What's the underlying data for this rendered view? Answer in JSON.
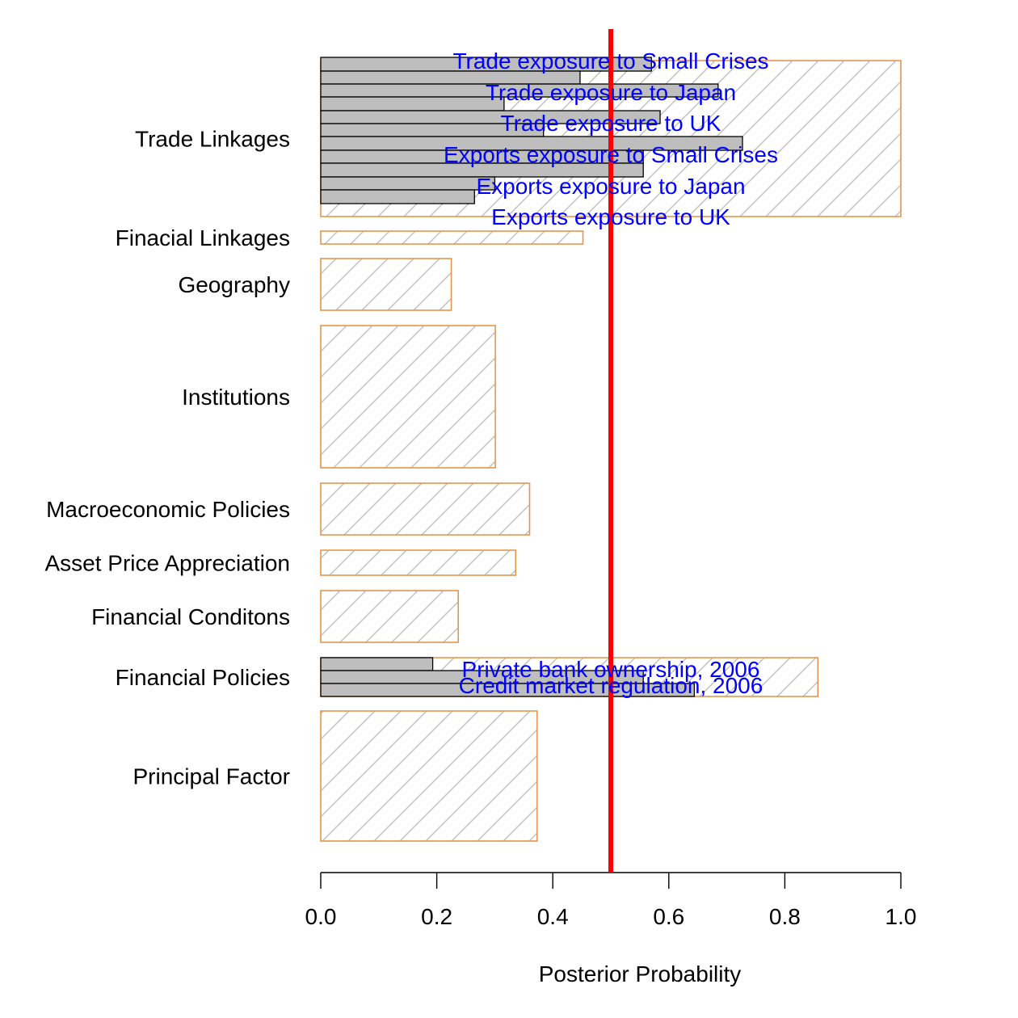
{
  "chart_data": {
    "type": "bar",
    "orientation": "horizontal",
    "xlabel": "Posterior Probability",
    "xlim": [
      0,
      1
    ],
    "xticks": [
      0.0,
      0.2,
      0.4,
      0.6,
      0.8,
      1.0
    ],
    "xtick_labels": [
      "0.0",
      "0.2",
      "0.4",
      "0.6",
      "0.8",
      "1.0"
    ],
    "threshold": 0.5,
    "grid": false,
    "legend": "none",
    "colors": {
      "group_border": "#e8954c",
      "hatch": "#bebebe",
      "variable_fill": "#bebebe",
      "variable_border": "#000000",
      "threshold_line": "#ff0000",
      "variable_label": "#0000ff"
    },
    "groups": [
      {
        "label": "Trade Linkages",
        "value": 1.0,
        "variables": [
          {
            "name": "",
            "value": 0.57
          },
          {
            "name": "",
            "value": 0.447
          },
          {
            "name": "",
            "value": 0.685
          },
          {
            "name": "",
            "value": 0.316
          },
          {
            "name": "",
            "value": 0.585
          },
          {
            "name": "",
            "value": 0.384
          },
          {
            "name": "",
            "value": 0.727
          },
          {
            "name": "",
            "value": 0.556
          },
          {
            "name": "",
            "value": 0.556
          },
          {
            "name": "",
            "value": 0.3
          },
          {
            "name": "",
            "value": 0.265
          }
        ],
        "labels": [
          "Trade exposure to Small Crises",
          "Trade exposure to Japan",
          "Trade exposure to UK",
          "Exports exposure to Small Crises",
          "Exports exposure to Japan",
          "Exports exposure to UK"
        ]
      },
      {
        "label": "Finacial Linkages",
        "value": 0.452,
        "variables": [],
        "labels": []
      },
      {
        "label": "Geography",
        "value": 0.225,
        "variables": [],
        "labels": []
      },
      {
        "label": "Institutions",
        "value": 0.301,
        "variables": [],
        "labels": []
      },
      {
        "label": "Macroeconomic Policies",
        "value": 0.36,
        "variables": [],
        "labels": []
      },
      {
        "label": "Asset Price Appreciation",
        "value": 0.336,
        "variables": [],
        "labels": []
      },
      {
        "label": "Financial Conditons",
        "value": 0.237,
        "variables": [],
        "labels": []
      },
      {
        "label": "Financial Policies",
        "value": 0.857,
        "variables": [
          {
            "name": "",
            "value": 0.193
          },
          {
            "name": "",
            "value": 0.556
          },
          {
            "name": "",
            "value": 0.644
          }
        ],
        "labels": [
          "Private bank ownership, 2006",
          "Credit market regulation, 2006"
        ]
      },
      {
        "label": "Principal Factor",
        "value": 0.373,
        "variables": [],
        "labels": []
      }
    ]
  }
}
